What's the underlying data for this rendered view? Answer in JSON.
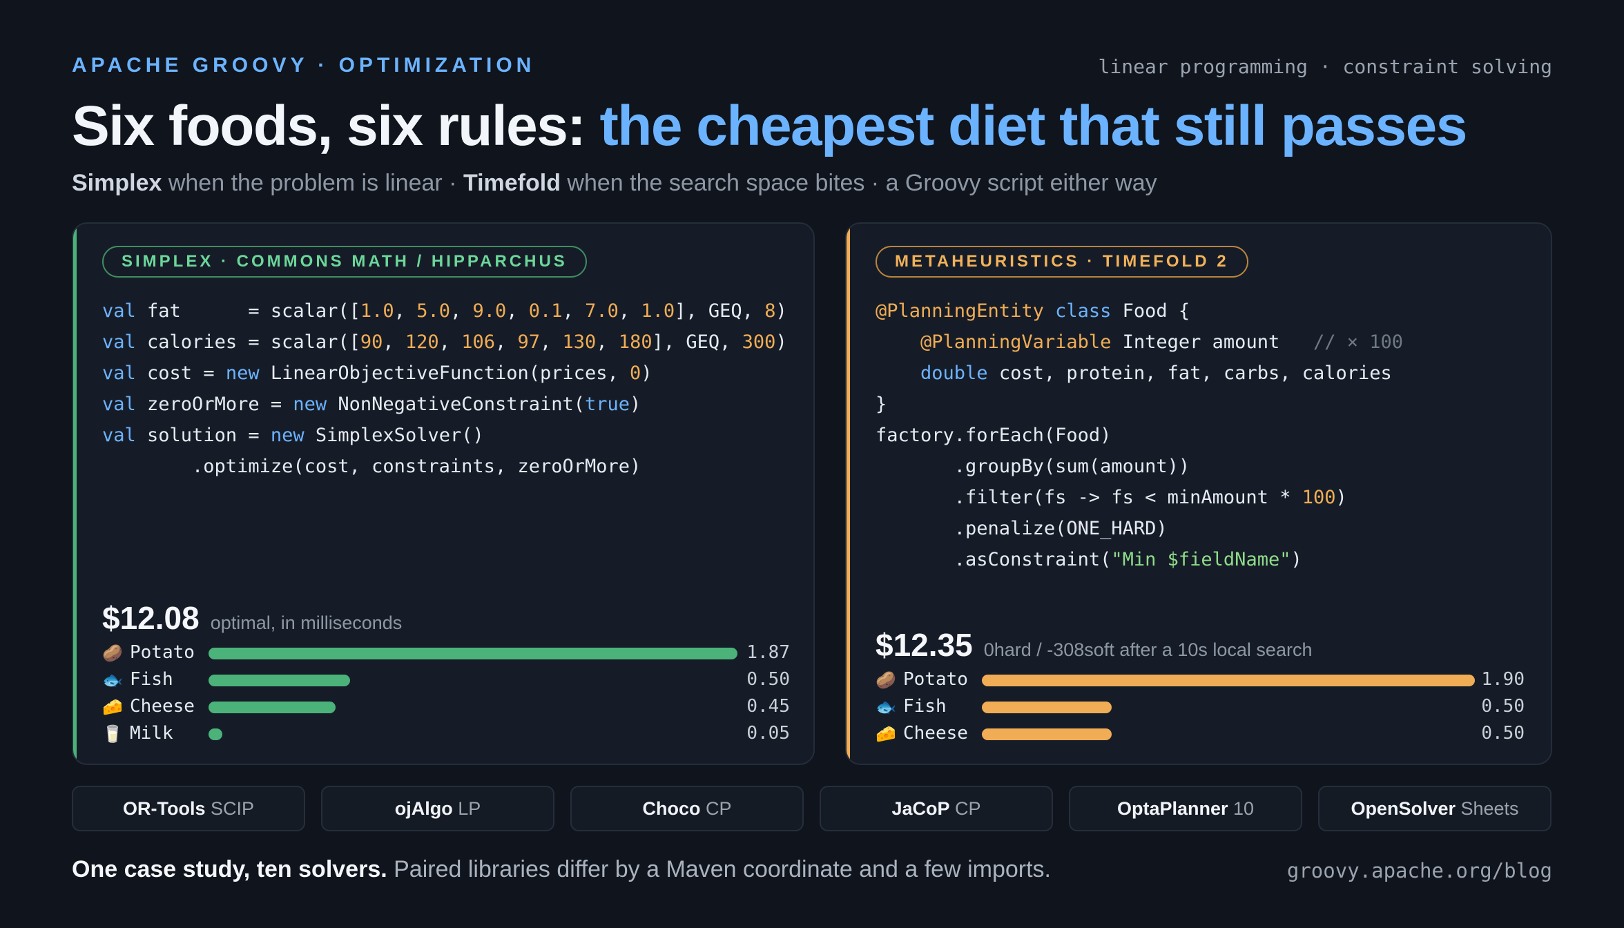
{
  "header": {
    "eyebrow": "APACHE GROOVY · OPTIMIZATION",
    "tagline": "linear programming · constraint solving",
    "title_lead": "Six foods, six rules: ",
    "title_accent": "the cheapest diet that still passes",
    "subtitle": {
      "term1": "Simplex",
      "text1": " when the problem is linear · ",
      "term2": "Timefold",
      "text2": " when the search space bites · a Groovy script either way"
    }
  },
  "simplex_panel": {
    "badge": "SIMPLEX · COMMONS MATH / HIPPARCHUS",
    "accent_color": "#4bb37a",
    "code_lines": [
      [
        [
          "kw",
          "val"
        ],
        [
          "p",
          " fat      = scalar(["
        ],
        [
          "num",
          "1.0"
        ],
        [
          "p",
          ", "
        ],
        [
          "num",
          "5.0"
        ],
        [
          "p",
          ", "
        ],
        [
          "num",
          "9.0"
        ],
        [
          "p",
          ", "
        ],
        [
          "num",
          "0.1"
        ],
        [
          "p",
          ", "
        ],
        [
          "num",
          "7.0"
        ],
        [
          "p",
          ", "
        ],
        [
          "num",
          "1.0"
        ],
        [
          "p",
          "], GEQ, "
        ],
        [
          "num",
          "8"
        ],
        [
          "p",
          ")"
        ]
      ],
      [
        [
          "kw",
          "val"
        ],
        [
          "p",
          " calories = scalar(["
        ],
        [
          "num",
          "90"
        ],
        [
          "p",
          ", "
        ],
        [
          "num",
          "120"
        ],
        [
          "p",
          ", "
        ],
        [
          "num",
          "106"
        ],
        [
          "p",
          ", "
        ],
        [
          "num",
          "97"
        ],
        [
          "p",
          ", "
        ],
        [
          "num",
          "130"
        ],
        [
          "p",
          ", "
        ],
        [
          "num",
          "180"
        ],
        [
          "p",
          "], GEQ, "
        ],
        [
          "num",
          "300"
        ],
        [
          "p",
          ")"
        ]
      ],
      [
        [
          "kw",
          "val"
        ],
        [
          "p",
          " cost = "
        ],
        [
          "kw",
          "new"
        ],
        [
          "p",
          " LinearObjectiveFunction(prices, "
        ],
        [
          "num",
          "0"
        ],
        [
          "p",
          ")"
        ]
      ],
      [
        [
          "kw",
          "val"
        ],
        [
          "p",
          " zeroOrMore = "
        ],
        [
          "kw",
          "new"
        ],
        [
          "p",
          " NonNegativeConstraint("
        ],
        [
          "kw",
          "true"
        ],
        [
          "p",
          ")"
        ]
      ],
      [
        [
          "kw",
          "val"
        ],
        [
          "p",
          " solution = "
        ],
        [
          "kw",
          "new"
        ],
        [
          "p",
          " SimplexSolver()"
        ]
      ],
      [
        [
          "p",
          "        .optimize(cost, constraints, zeroOrMore)"
        ]
      ]
    ],
    "result_price": "$12.08",
    "result_note": "optimal, in milliseconds",
    "bars": [
      {
        "icon": "🥔",
        "label": "Potato",
        "value": 1.87,
        "display": "1.87"
      },
      {
        "icon": "🐟",
        "label": "Fish",
        "value": 0.5,
        "display": "0.50"
      },
      {
        "icon": "🧀",
        "label": "Cheese",
        "value": 0.45,
        "display": "0.45"
      },
      {
        "icon": "🥛",
        "label": "Milk",
        "value": 0.05,
        "display": "0.05"
      }
    ],
    "bar_max": 1.87
  },
  "timefold_panel": {
    "badge": "METAHEURISTICS · TIMEFOLD 2",
    "accent_color": "#f0ad55",
    "code_lines": [
      [
        [
          "an",
          "@PlanningEntity"
        ],
        [
          "p",
          " "
        ],
        [
          "kw",
          "class"
        ],
        [
          "p",
          " Food {"
        ]
      ],
      [
        [
          "p",
          "    "
        ],
        [
          "an",
          "@PlanningVariable"
        ],
        [
          "p",
          " Integer amount   "
        ],
        [
          "cm",
          "// × 100"
        ]
      ],
      [
        [
          "p",
          "    "
        ],
        [
          "kw",
          "double"
        ],
        [
          "p",
          " cost, protein, fat, carbs, calories"
        ]
      ],
      [
        [
          "p",
          "}"
        ]
      ],
      [
        [
          "p",
          "factory.forEach(Food)"
        ]
      ],
      [
        [
          "p",
          "       .groupBy(sum(amount))"
        ]
      ],
      [
        [
          "p",
          "       .filter(fs -> fs < minAmount * "
        ],
        [
          "num",
          "100"
        ],
        [
          "p",
          ")"
        ]
      ],
      [
        [
          "p",
          "       .penalize(ONE_HARD)"
        ]
      ],
      [
        [
          "p",
          "       .asConstraint("
        ],
        [
          "str",
          "\"Min $fieldName\""
        ],
        [
          "p",
          ")"
        ]
      ]
    ],
    "result_price": "$12.35",
    "result_note": "0hard / -308soft after a 10s local search",
    "bars": [
      {
        "icon": "🥔",
        "label": "Potato",
        "value": 1.9,
        "display": "1.90"
      },
      {
        "icon": "🐟",
        "label": "Fish",
        "value": 0.5,
        "display": "0.50"
      },
      {
        "icon": "🧀",
        "label": "Cheese",
        "value": 0.5,
        "display": "0.50"
      }
    ],
    "bar_max": 1.9
  },
  "solvers": [
    {
      "name": "OR-Tools",
      "detail": " SCIP"
    },
    {
      "name": "ojAlgo",
      "detail": " LP"
    },
    {
      "name": "Choco",
      "detail": " CP"
    },
    {
      "name": "JaCoP",
      "detail": " CP"
    },
    {
      "name": "OptaPlanner",
      "detail": " 10"
    },
    {
      "name": "OpenSolver",
      "detail": " Sheets"
    }
  ],
  "footer": {
    "lead": "One case study, ten solvers.",
    "text": " Paired libraries differ by a Maven coordinate and a few imports.",
    "link": "groovy.apache.org/blog"
  }
}
